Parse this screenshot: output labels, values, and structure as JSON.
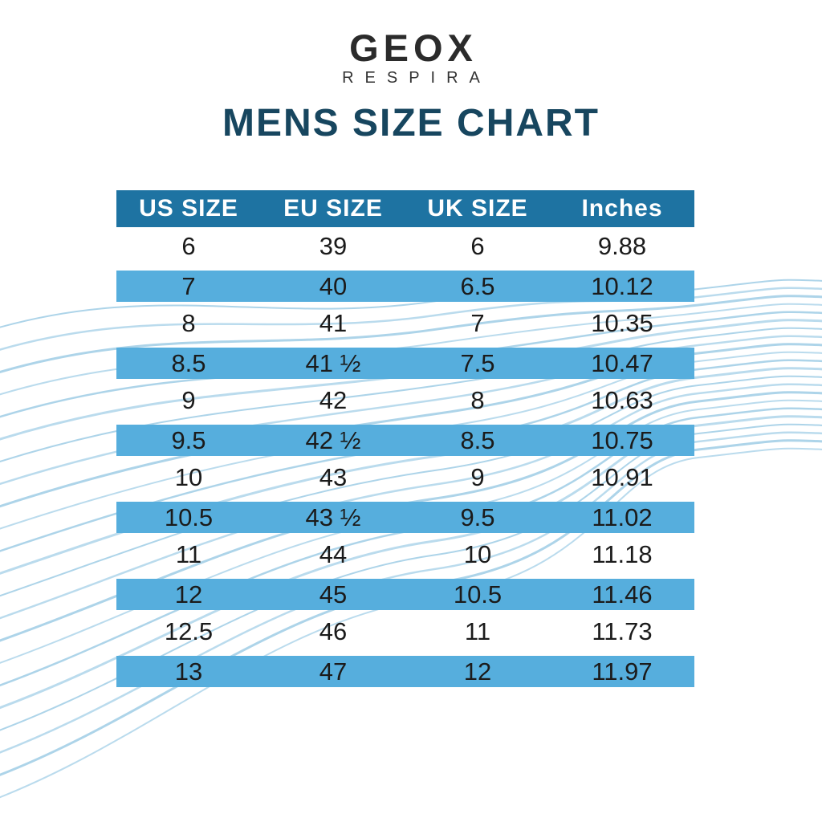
{
  "brand": {
    "name": "GEOX",
    "tagline": "RESPIRA"
  },
  "title": "MENS SIZE CHART",
  "chart_data": {
    "type": "table",
    "title": "MENS SIZE CHART",
    "columns": [
      "US SIZE",
      "EU SIZE",
      "UK SIZE",
      "Inches"
    ],
    "rows": [
      [
        "6",
        "39",
        "6",
        "9.88"
      ],
      [
        "7",
        "40",
        "6.5",
        "10.12"
      ],
      [
        "8",
        "41",
        "7",
        "10.35"
      ],
      [
        "8.5",
        "41 ½",
        "7.5",
        "10.47"
      ],
      [
        "9",
        "42",
        "8",
        "10.63"
      ],
      [
        "9.5",
        "42 ½",
        "8.5",
        "10.75"
      ],
      [
        "10",
        "43",
        "9",
        "10.91"
      ],
      [
        "10.5",
        "43 ½",
        "9.5",
        "11.02"
      ],
      [
        "11",
        "44",
        "10",
        "11.18"
      ],
      [
        "12",
        "45",
        "10.5",
        "11.46"
      ],
      [
        "12.5",
        "46",
        "11",
        "11.73"
      ],
      [
        "13",
        "47",
        "12",
        "11.97"
      ]
    ],
    "highlighted_rows": [
      1,
      3,
      5,
      7,
      9,
      11
    ],
    "legend_position": "none",
    "grid": false
  },
  "colors": {
    "header_bg": "#1e73a2",
    "row_highlight": "#56aedd",
    "title_color": "#17465f",
    "wave_color": "#a9d2e8",
    "cell_text": "#1b1b1b",
    "header_text": "#ffffff",
    "logo_color": "#2b2b2b",
    "canvas_bg": "#ffffff"
  }
}
